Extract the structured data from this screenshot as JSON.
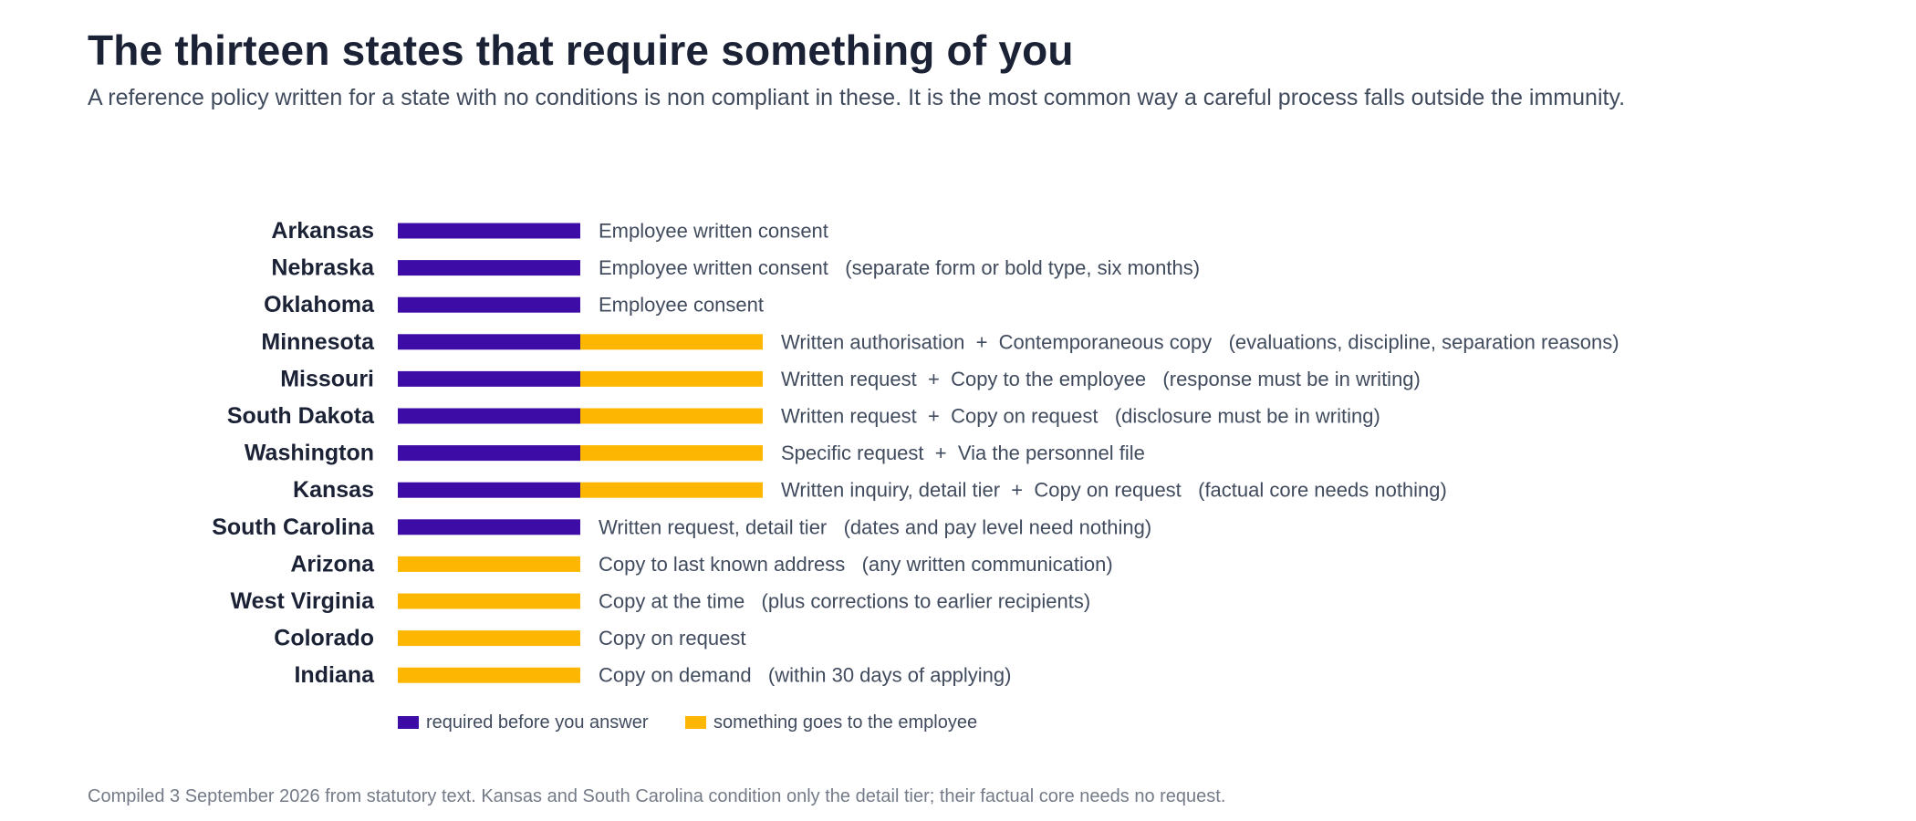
{
  "page": {
    "title": "The thirteen states that require something of you",
    "subtitle": "A reference policy written for a state with no conditions is non compliant in these. It is the most common way a careful process falls outside the immunity.",
    "footnote": "Compiled 3 September 2026 from statutory text. Kansas and South Carolina condition only the detail tier; their factual core needs no request."
  },
  "colors": {
    "required": "#3d0ca6",
    "employee": "#fdb702"
  },
  "chart_data": {
    "type": "bar",
    "orientation": "horizontal",
    "stacked": true,
    "categories": [
      "Arkansas",
      "Nebraska",
      "Oklahoma",
      "Minnesota",
      "Missouri",
      "South Dakota",
      "Washington",
      "Kansas",
      "South Carolina",
      "Arizona",
      "West Virginia",
      "Colorado",
      "Indiana"
    ],
    "series": [
      {
        "name": "required before you answer",
        "values": [
          1,
          1,
          1,
          1,
          1,
          1,
          1,
          1,
          1,
          0,
          0,
          0,
          0
        ]
      },
      {
        "name": "something goes to the employee",
        "values": [
          0,
          0,
          0,
          1,
          1,
          1,
          1,
          1,
          0,
          1,
          1,
          1,
          1
        ]
      }
    ],
    "annotations": [
      "Employee written consent",
      "Employee written consent   (separate form or bold type, six months)",
      "Employee consent",
      "Written authorisation  +  Contemporaneous copy   (evaluations, discipline, separation reasons)",
      "Written request  +  Copy to the employee   (response must be in writing)",
      "Written request  +  Copy on request   (disclosure must be in writing)",
      "Specific request  +  Via the personnel file",
      "Written inquiry, detail tier  +  Copy on request   (factual core needs nothing)",
      "Written request, detail tier   (dates and pay level need nothing)",
      "Copy to last known address   (any written communication)",
      "Copy at the time   (plus corrections to earlier recipients)",
      "Copy on request",
      "Copy on demand   (within 30 days of applying)"
    ],
    "legend": "bottom-left",
    "grid": false
  }
}
